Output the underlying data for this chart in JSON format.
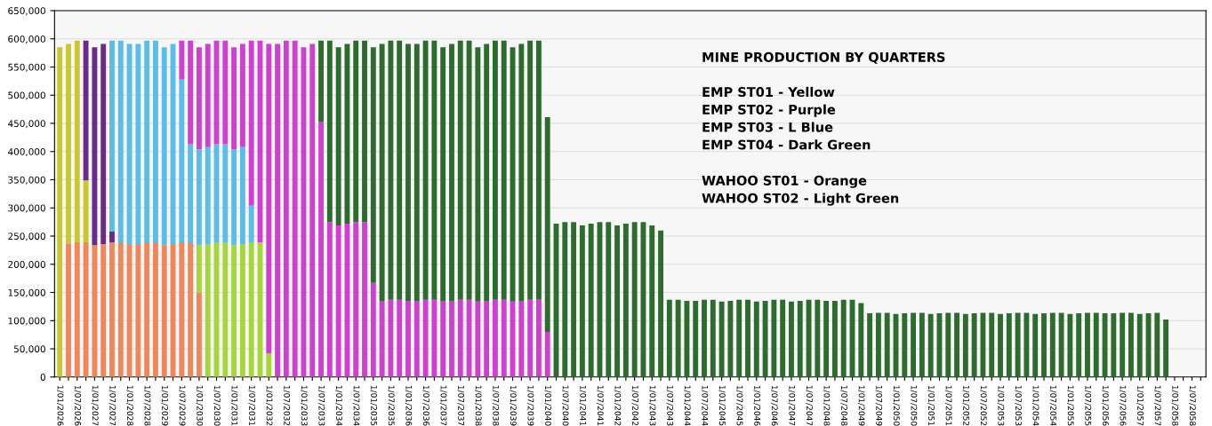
{
  "chart_data": {
    "type": "bar",
    "stacked": true,
    "title": "MINE PRODUCTION BY QUARTERS",
    "annotations": [
      "EMP ST01 - Yellow",
      "EMP ST02 - Purple",
      "EMP ST03 - L Blue",
      "EMP ST04 - Dark Green",
      "WAHOO ST01 - Orange",
      "WAHOO ST02 - Light Green"
    ],
    "categories": [
      "1/01/2026",
      null,
      "1/07/2026",
      null,
      "1/01/2027",
      null,
      "1/07/2027",
      null,
      "1/01/2028",
      null,
      "1/07/2028",
      null,
      "1/01/2029",
      null,
      "1/07/2029",
      null,
      "1/01/2030",
      null,
      "1/07/2030",
      null,
      "1/01/2031",
      null,
      "1/07/2031",
      null,
      "1/01/2032",
      null,
      "1/07/2032",
      null,
      "1/01/2033",
      null,
      "1/07/2033",
      null,
      "1/01/2034",
      null,
      "1/07/2034",
      null,
      "1/01/2035",
      null,
      "1/07/2035",
      null,
      "1/01/2036",
      null,
      "1/07/2036",
      null,
      "1/01/2037",
      null,
      "1/07/2037",
      null,
      "1/01/2038",
      null,
      "1/07/2038",
      null,
      "1/01/2039",
      null,
      "1/07/2039",
      null,
      "1/01/2040",
      null,
      "1/07/2040",
      null,
      "1/01/2041",
      null,
      "1/07/2041",
      null,
      "1/01/2042",
      null,
      "1/07/2042",
      null,
      "1/01/2043",
      null,
      "1/07/2043",
      null,
      "1/01/2044",
      null,
      "1/07/2044",
      null,
      "1/01/2045",
      null,
      "1/07/2045",
      null,
      "1/01/2046",
      null,
      "1/07/2046",
      null,
      "1/01/2047",
      null,
      "1/07/2047",
      null,
      "1/01/2048",
      null,
      "1/07/2048",
      null,
      "1/01/2049",
      null,
      "1/07/2049",
      null,
      "1/01/2050",
      null,
      "1/07/2050",
      null,
      "1/01/2051",
      null,
      "1/07/2051",
      null,
      "1/01/2052",
      null,
      "1/07/2052",
      null,
      "1/01/2053",
      null,
      "1/07/2053",
      null,
      "1/01/2054",
      null,
      "1/07/2054",
      null,
      "1/01/2055",
      null,
      "1/07/2055",
      null,
      "1/01/2056",
      null,
      "1/07/2056",
      null,
      "1/01/2057",
      null,
      "1/07/2057",
      null,
      "1/01/2058",
      null,
      "1/07/2058",
      null
    ],
    "series": [
      {
        "color": "#f0875a",
        "values": [
          null,
          237000,
          239000,
          239000,
          234000,
          236000,
          239000,
          239000,
          236000,
          236000,
          239000,
          239000,
          234000,
          236000,
          239000,
          239000,
          150000,
          null,
          null,
          null,
          null,
          null,
          null,
          null,
          null,
          null,
          null,
          null,
          null,
          null,
          null,
          null,
          null,
          null,
          null,
          null,
          null,
          null,
          null,
          null,
          null,
          null,
          null,
          null,
          null,
          null,
          null,
          null,
          null,
          null,
          null,
          null,
          null,
          null,
          null,
          null,
          null,
          null,
          null,
          null,
          null,
          null,
          null,
          null,
          null,
          null,
          null,
          null,
          null,
          null,
          null,
          null,
          null,
          null,
          null,
          null,
          null,
          null,
          null,
          null,
          null,
          null,
          null,
          null,
          null,
          null,
          null,
          null,
          null,
          null,
          null,
          null,
          null,
          null,
          null,
          null,
          null,
          null,
          null,
          null,
          null,
          null,
          null,
          null,
          null,
          null,
          null,
          null,
          null,
          null,
          null,
          null,
          null,
          null,
          null,
          null,
          null,
          null,
          null,
          null,
          null,
          null,
          null,
          null,
          null,
          null,
          null,
          null,
          null,
          null,
          null,
          null
        ]
      },
      {
        "color": "#a6d63c",
        "values": [
          null,
          null,
          null,
          null,
          null,
          null,
          null,
          null,
          null,
          null,
          null,
          null,
          null,
          null,
          null,
          null,
          84000,
          236000,
          239000,
          239000,
          234000,
          236000,
          239000,
          239000,
          42000,
          null,
          null,
          null,
          null,
          null,
          null,
          null,
          null,
          null,
          null,
          null,
          null,
          null,
          null,
          null,
          null,
          null,
          null,
          null,
          null,
          null,
          null,
          null,
          null,
          null,
          null,
          null,
          null,
          null,
          null,
          null,
          null,
          null,
          null,
          null,
          null,
          null,
          null,
          null,
          null,
          null,
          null,
          null,
          null,
          null,
          null,
          null,
          null,
          null,
          null,
          null,
          null,
          null,
          null,
          null,
          null,
          null,
          null,
          null,
          null,
          null,
          null,
          null,
          null,
          null,
          null,
          null,
          null,
          null,
          null,
          null,
          null,
          null,
          null,
          null,
          null,
          null,
          null,
          null,
          null,
          null,
          null,
          null,
          null,
          null,
          null,
          null,
          null,
          null,
          null,
          null,
          null,
          null,
          null,
          null,
          null,
          null,
          null,
          null,
          null,
          null,
          null,
          null,
          null,
          null,
          null,
          null
        ]
      },
      {
        "color": "#c8c832",
        "values": [
          585000,
          354000,
          358000,
          110000,
          null,
          null,
          null,
          null,
          null,
          null,
          null,
          null,
          null,
          null,
          null,
          null,
          null,
          null,
          null,
          null,
          null,
          null,
          null,
          null,
          null,
          null,
          null,
          null,
          null,
          null,
          null,
          null,
          null,
          null,
          null,
          null,
          null,
          null,
          null,
          null,
          null,
          null,
          null,
          null,
          null,
          null,
          null,
          null,
          null,
          null,
          null,
          null,
          null,
          null,
          null,
          null,
          null,
          null,
          null,
          null,
          null,
          null,
          null,
          null,
          null,
          null,
          null,
          null,
          null,
          null,
          null,
          null,
          null,
          null,
          null,
          null,
          null,
          null,
          null,
          null,
          null,
          null,
          null,
          null,
          null,
          null,
          null,
          null,
          null,
          null,
          null,
          null,
          null,
          null,
          null,
          null,
          null,
          null,
          null,
          null,
          null,
          null,
          null,
          null,
          null,
          null,
          null,
          null,
          null,
          null,
          null,
          null,
          null,
          null,
          null,
          null,
          null,
          null,
          null,
          null,
          null,
          null,
          null,
          null,
          null,
          null,
          null,
          null,
          null,
          null,
          null,
          null
        ]
      },
      {
        "color": "#6a2a8a",
        "values": [
          null,
          null,
          null,
          248000,
          351000,
          355000,
          19000,
          null,
          null,
          null,
          null,
          null,
          null,
          null,
          null,
          null,
          null,
          null,
          null,
          null,
          null,
          null,
          null,
          null,
          null,
          null,
          null,
          null,
          null,
          null,
          null,
          null,
          null,
          null,
          null,
          null,
          null,
          null,
          null,
          null,
          null,
          null,
          null,
          null,
          null,
          null,
          null,
          null,
          null,
          null,
          null,
          null,
          null,
          null,
          null,
          null,
          null,
          null,
          null,
          null,
          null,
          null,
          null,
          null,
          null,
          null,
          null,
          null,
          null,
          null,
          null,
          null,
          null,
          null,
          null,
          null,
          null,
          null,
          null,
          null,
          null,
          null,
          null,
          null,
          null,
          null,
          null,
          null,
          null,
          null,
          null,
          null,
          null,
          null,
          null,
          null,
          null,
          null,
          null,
          null,
          null,
          null,
          null,
          null,
          null,
          null,
          null,
          null,
          null,
          null,
          null,
          null,
          null,
          null,
          null,
          null,
          null,
          null,
          null,
          null,
          null,
          null,
          null,
          null,
          null,
          null,
          null,
          null,
          null,
          null,
          null,
          null
        ]
      },
      {
        "color": "#5bbde8",
        "values": [
          null,
          null,
          null,
          null,
          null,
          null,
          339000,
          358000,
          355000,
          355000,
          358000,
          358000,
          351000,
          355000,
          289000,
          174000,
          170000,
          172000,
          174000,
          174000,
          170000,
          172000,
          65000,
          null,
          null,
          null,
          null,
          null,
          null,
          null,
          null,
          null,
          null,
          null,
          null,
          null,
          null,
          null,
          null,
          null,
          null,
          null,
          null,
          null,
          null,
          null,
          null,
          null,
          null,
          null,
          null,
          null,
          null,
          null,
          null,
          null,
          null,
          null,
          null,
          null,
          null,
          null,
          null,
          null,
          null,
          null,
          null,
          null,
          null,
          null,
          null,
          null,
          null,
          null,
          null,
          null,
          null,
          null,
          null,
          null,
          null,
          null,
          null,
          null,
          null,
          null,
          null,
          null,
          null,
          null,
          null,
          null,
          null,
          null,
          null,
          null,
          null,
          null,
          null,
          null,
          null,
          null,
          null,
          null,
          null,
          null,
          null,
          null,
          null,
          null,
          null,
          null,
          null,
          null,
          null,
          null,
          null,
          null,
          null,
          null,
          null,
          null,
          null,
          null,
          null,
          null,
          null,
          null,
          null,
          null,
          null,
          null
        ]
      },
      {
        "color": "#d040d0",
        "values": [
          null,
          null,
          null,
          null,
          null,
          null,
          null,
          null,
          null,
          null,
          null,
          null,
          null,
          null,
          69000,
          184000,
          181000,
          183000,
          184000,
          184000,
          181000,
          183000,
          293000,
          358000,
          549000,
          591000,
          597000,
          597000,
          585000,
          591000,
          453000,
          275000,
          269000,
          272000,
          275000,
          275000,
          167000,
          135000,
          137000,
          137000,
          135000,
          135000,
          137000,
          137000,
          134000,
          135000,
          137000,
          137000,
          134000,
          135000,
          137000,
          137000,
          134000,
          135000,
          137000,
          137000,
          80000,
          null,
          null,
          null,
          null,
          null,
          null,
          null,
          null,
          null,
          null,
          null,
          null,
          null,
          null,
          null,
          null,
          null,
          null,
          null,
          null,
          null,
          null,
          null,
          null,
          null,
          null,
          null,
          null,
          null,
          null,
          null,
          null,
          null,
          null,
          null,
          null,
          null,
          null,
          null,
          null,
          null,
          null,
          null,
          null,
          null,
          null,
          null,
          null,
          null,
          null,
          null,
          null,
          null,
          null,
          null,
          null,
          null,
          null,
          null,
          null,
          null,
          null,
          null,
          null,
          null,
          null,
          null,
          null,
          null,
          null,
          null,
          null,
          null,
          null,
          null
        ]
      },
      {
        "color": "#2e6b2e",
        "values": [
          null,
          null,
          null,
          null,
          null,
          null,
          null,
          null,
          null,
          null,
          null,
          null,
          null,
          null,
          null,
          null,
          null,
          null,
          null,
          null,
          null,
          null,
          null,
          null,
          null,
          null,
          null,
          null,
          null,
          null,
          144000,
          322000,
          316000,
          319000,
          322000,
          322000,
          418000,
          456000,
          460000,
          460000,
          456000,
          456000,
          460000,
          460000,
          451000,
          456000,
          460000,
          460000,
          451000,
          456000,
          460000,
          460000,
          451000,
          456000,
          460000,
          460000,
          381000,
          272000,
          275000,
          275000,
          269000,
          272000,
          275000,
          275000,
          269000,
          272000,
          275000,
          275000,
          269000,
          260000,
          137000,
          137000,
          135000,
          135000,
          137000,
          137000,
          134000,
          135000,
          137000,
          137000,
          134000,
          135000,
          137000,
          137000,
          134000,
          135000,
          137000,
          137000,
          135000,
          135000,
          137000,
          137000,
          131000,
          113000,
          114000,
          114000,
          112000,
          113000,
          114000,
          114000,
          112000,
          113000,
          114000,
          114000,
          112000,
          113000,
          114000,
          114000,
          112000,
          113000,
          114000,
          114000,
          112000,
          113000,
          114000,
          114000,
          112000,
          113000,
          114000,
          114000,
          113000,
          113000,
          114000,
          114000,
          112000,
          113000,
          114000,
          102000,
          null,
          null,
          null,
          null
        ]
      }
    ],
    "ylim": [
      0,
      650000
    ],
    "yticks": [
      0,
      {
        "value": 50000,
        "label": "50,000"
      },
      {
        "value": 100000,
        "label": "100,000"
      },
      {
        "value": 150000,
        "label": "150,000"
      },
      {
        "value": 200000,
        "label": "200,000"
      },
      {
        "value": 250000,
        "label": "250,000"
      },
      {
        "value": 300000,
        "label": "300,000"
      },
      {
        "value": 350000,
        "label": "350,000"
      },
      {
        "value": 400000,
        "label": "400,000"
      },
      {
        "value": 450000,
        "label": "450,000"
      },
      {
        "value": 500000,
        "label": "500,000"
      },
      {
        "value": 550000,
        "label": "550,000"
      },
      {
        "value": 600000,
        "label": "600,000"
      },
      {
        "value": 650000,
        "label": "650,000"
      }
    ],
    "grid": "y"
  }
}
